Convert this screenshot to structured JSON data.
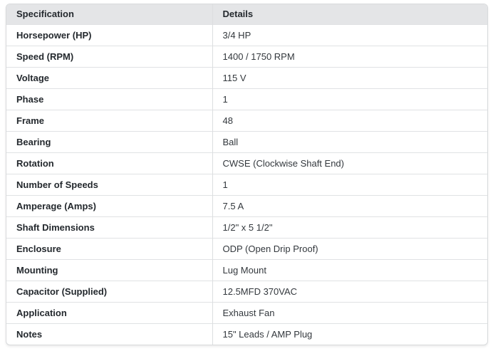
{
  "table": {
    "columns": {
      "specification": "Specification",
      "details": "Details"
    },
    "rows": [
      {
        "spec": "Horsepower (HP)",
        "detail": "3/4 HP"
      },
      {
        "spec": "Speed (RPM)",
        "detail": "1400 / 1750 RPM"
      },
      {
        "spec": "Voltage",
        "detail": "115 V"
      },
      {
        "spec": "Phase",
        "detail": "1"
      },
      {
        "spec": "Frame",
        "detail": "48"
      },
      {
        "spec": "Bearing",
        "detail": "Ball"
      },
      {
        "spec": "Rotation",
        "detail": "CWSE (Clockwise Shaft End)"
      },
      {
        "spec": "Number of Speeds",
        "detail": "1"
      },
      {
        "spec": "Amperage (Amps)",
        "detail": "7.5 A"
      },
      {
        "spec": "Shaft Dimensions",
        "detail": "1/2\" x 5 1/2\""
      },
      {
        "spec": "Enclosure",
        "detail": "ODP (Open Drip Proof)"
      },
      {
        "spec": "Mounting",
        "detail": "Lug Mount"
      },
      {
        "spec": "Capacitor (Supplied)",
        "detail": "12.5MFD 370VAC"
      },
      {
        "spec": "Application",
        "detail": "Exhaust Fan"
      },
      {
        "spec": "Notes",
        "detail": "15\" Leads / AMP Plug"
      }
    ],
    "colors": {
      "header_bg": "#e4e5e7",
      "border": "#d8dadc",
      "label_text": "#24292e",
      "value_text": "#33383d"
    }
  }
}
